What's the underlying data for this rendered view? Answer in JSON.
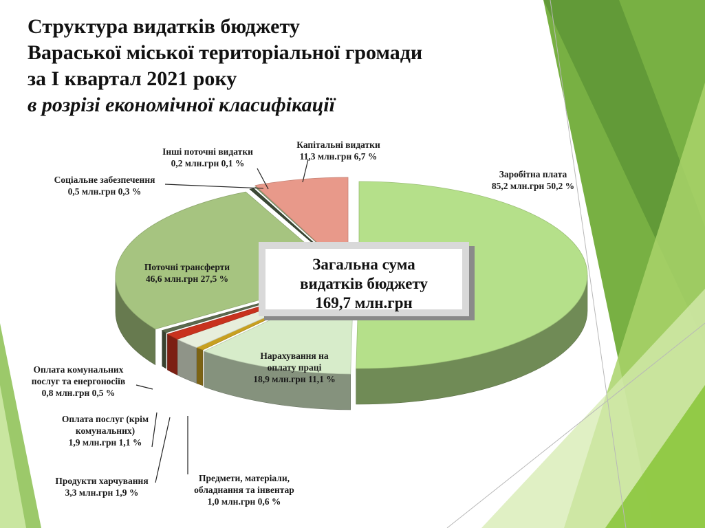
{
  "title": {
    "line1": "Структура  видатків  бюджету",
    "line2": "Вараської міської територіальної  громади",
    "line3": "за І  квартал  2021 року",
    "subtitle": "в розрізі економічної класифікації"
  },
  "center_box": {
    "line1": "Загальна сума",
    "line2": "видатків   бюджету",
    "line3": "169,7 млн.грн"
  },
  "chart_data": {
    "type": "pie",
    "total": 169.7,
    "unit": "млн.грн",
    "slices": [
      {
        "name": "Заробітна  плата",
        "value": 85.2,
        "percent": 50.2,
        "value_label": "85,2 млн.грн 50,2 %",
        "color": "#b5e08a"
      },
      {
        "name": "Нарахування на оплату праці",
        "value": 18.9,
        "percent": 11.1,
        "value_label": "18,9 млн.грн 11,1 %",
        "color": "#d7ecca"
      },
      {
        "name": "Предмети, матеріали, обладнання та інвентар",
        "value": 1.0,
        "percent": 0.6,
        "value_label": "1,0 млн.грн  0,6 %",
        "color": "#c8a020"
      },
      {
        "name": "Продукти харчування",
        "value": 3.3,
        "percent": 1.9,
        "value_label": "3,3 млн.грн 1,9 %",
        "color": "#e7eedc"
      },
      {
        "name": "Оплата послуг (крім комунальних)",
        "value": 1.9,
        "percent": 1.1,
        "value_label": "1,9 млн.грн 1,1 %",
        "color": "#c8321e"
      },
      {
        "name": "Оплата комунальних послуг та енергоносіїв",
        "value": 0.8,
        "percent": 0.5,
        "value_label": "0,8 млн.грн 0,5 %",
        "color": "#5c6a4e"
      },
      {
        "name": "Поточні трансферти",
        "value": 46.6,
        "percent": 27.5,
        "value_label": "46,6 млн.грн 27,5 %",
        "color": "#a6c480"
      },
      {
        "name": "Соціальне забезпечення",
        "value": 0.5,
        "percent": 0.3,
        "value_label": "0,5 млн.грн 0,3 %",
        "color": "#3c4a36"
      },
      {
        "name": "Інші поточні видатки",
        "value": 0.2,
        "percent": 0.1,
        "value_label": "0,2 млн.грн 0,1 %",
        "color": "#8aa070"
      },
      {
        "name": "Капітальні видатки",
        "value": 11.3,
        "percent": 6.7,
        "value_label": "11,3 млн.грн 6,7 %",
        "color": "#e8998a"
      }
    ],
    "label_lines": {
      "Заробітна  плата": [
        "Заробітна  плата",
        "85,2 млн.грн 50,2 %"
      ],
      "Нарахування на оплату праці": [
        "Нарахування на",
        "оплату праці",
        "18,9 млн.грн 11,1 %"
      ],
      "Предмети, матеріали, обладнання та інвентар": [
        "Предмети, матеріали,",
        "обладнання та інвентар",
        "1,0 млн.грн  0,6 %"
      ],
      "Продукти харчування": [
        "Продукти харчування",
        "3,3 млн.грн 1,9 %"
      ],
      "Оплата послуг (крім комунальних)": [
        "Оплата послуг (крім",
        "комунальних)",
        "1,9 млн.грн 1,1 %"
      ],
      "Оплата комунальних послуг та енергоносіїв": [
        "Оплата комунальних",
        "послуг та енергоносіїв",
        "0,8 млн.грн 0,5 %"
      ],
      "Поточні трансферти": [
        "Поточні трансферти",
        "46,6 млн.грн 27,5 %"
      ],
      "Соціальне забезпечення": [
        "Соціальне забезпечення",
        "0,5 млн.грн 0,3 %"
      ],
      "Інші поточні видатки": [
        "Інші поточні видатки",
        "0,2 млн.грн 0,1 %"
      ],
      "Капітальні видатки": [
        "Капітальні видатки",
        "11,3 млн.грн 6,7 %"
      ]
    }
  },
  "theme": {
    "accent_green": "#8cc63e",
    "dark_green": "#4e8a2e",
    "light_green": "#c9e6a0"
  }
}
